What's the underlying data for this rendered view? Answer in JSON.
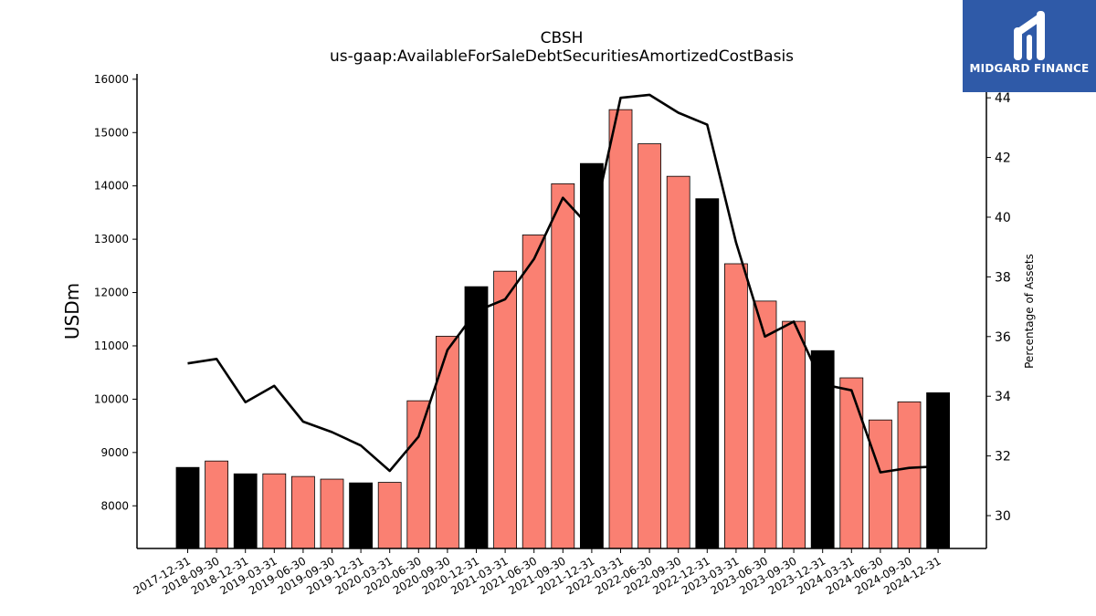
{
  "chart_data": {
    "type": "bar+line",
    "title": "CBSH",
    "subtitle": "us-gaap:AvailableForSaleDebtSecuritiesAmortizedCostBasis",
    "ylabel": "USDm",
    "y2label": "Percentage of Assets",
    "ylim": [
      7200,
      16100
    ],
    "y2lim": [
      28.9,
      44.8
    ],
    "yticks": [
      8000,
      9000,
      10000,
      11000,
      12000,
      13000,
      14000,
      15000,
      16000
    ],
    "y2ticks": [
      30,
      32,
      34,
      36,
      38,
      40,
      42,
      44
    ],
    "categories": [
      "2017-12-31",
      "2018-09-30",
      "2018-12-31",
      "2019-03-31",
      "2019-06-30",
      "2019-09-30",
      "2019-12-31",
      "2020-03-31",
      "2020-06-30",
      "2020-09-30",
      "2020-12-31",
      "2021-03-31",
      "2021-06-30",
      "2021-09-30",
      "2021-12-31",
      "2022-03-31",
      "2022-06-30",
      "2022-09-30",
      "2022-12-31",
      "2023-03-31",
      "2023-06-30",
      "2023-09-30",
      "2023-12-31",
      "2024-03-31",
      "2024-06-30",
      "2024-09-30",
      "2024-12-31"
    ],
    "series": [
      {
        "type": "bar",
        "values": [
          8720,
          8840,
          8600,
          8600,
          8550,
          8500,
          8430,
          8440,
          9970,
          11180,
          12110,
          12400,
          13080,
          14040,
          14420,
          15430,
          14790,
          14180,
          13760,
          12540,
          11840,
          11460,
          10910,
          10400,
          9610,
          9950,
          10120
        ]
      },
      {
        "type": "line",
        "axis": "right",
        "values": [
          35.1,
          35.25,
          33.8,
          34.35,
          33.15,
          32.8,
          32.35,
          31.5,
          32.65,
          35.55,
          36.85,
          37.25,
          38.6,
          40.65,
          39.6,
          44.0,
          44.1,
          43.5,
          43.1,
          39.15,
          36.0,
          36.5,
          34.4,
          34.2,
          31.45,
          31.6,
          31.65
        ]
      }
    ],
    "bar_colors": {
      "quarter": "#fa8072",
      "year_end": "#000000",
      "outline": "#000000"
    },
    "line_color": "#000000",
    "grid": false
  },
  "logo": {
    "text": "MIDGARD FINANCE",
    "background": "#2f5aa8"
  }
}
